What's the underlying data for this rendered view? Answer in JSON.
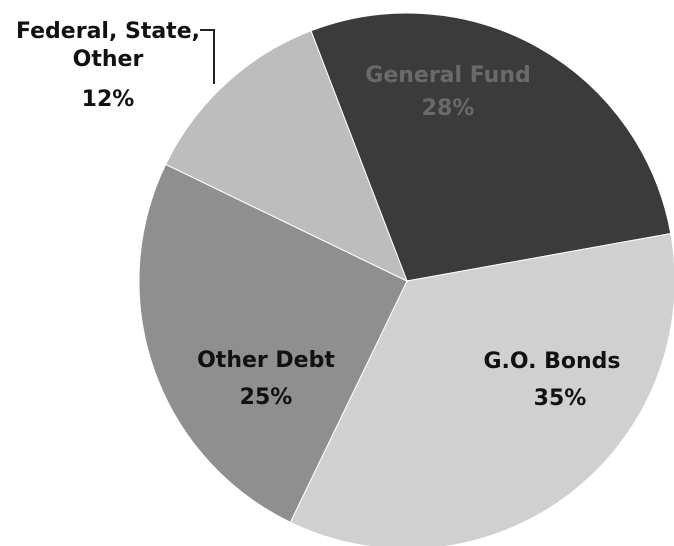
{
  "chart_data": {
    "type": "pie",
    "title": "",
    "slices": [
      {
        "category": "General Fund",
        "value": 28,
        "value_label": "28%",
        "color": "#3b3b3b"
      },
      {
        "category": "G.O. Bonds",
        "value": 35,
        "value_label": "35%",
        "color": "#d0d0d0"
      },
      {
        "category": "Other Debt",
        "value": 25,
        "value_label": "25%",
        "color": "#8f8f8f"
      },
      {
        "category": "Federal, State, Other",
        "value": 12,
        "value_label": "12%",
        "color": "#bdbdbd"
      }
    ],
    "outside_label": {
      "line1": "Federal, State,",
      "line2": "Other",
      "line3": "12%"
    }
  }
}
